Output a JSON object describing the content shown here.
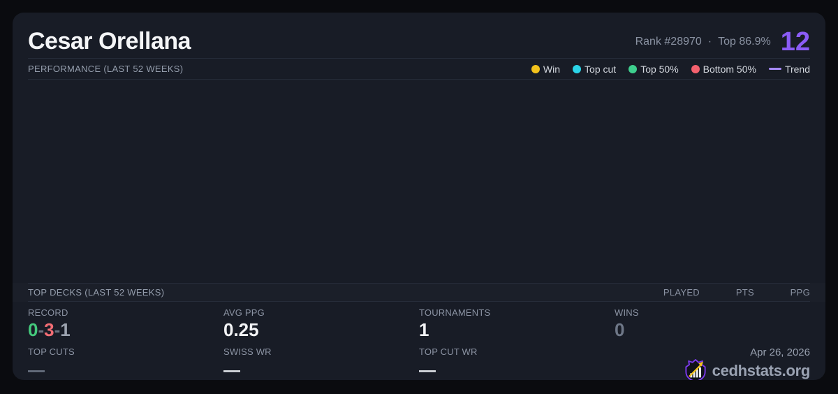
{
  "colors": {
    "accent_purple": "#8B5CF6",
    "win": "#F2C21C",
    "top_cut": "#2BD4E8",
    "top_50": "#3ECF8E",
    "bottom_50": "#F4616E",
    "trend": "#A78BFA",
    "record_win": "#44C97C",
    "record_loss": "#F26D74",
    "record_draw": "#9CA3AF"
  },
  "header": {
    "title": "Cesar Orellana",
    "rank": "Rank #28970",
    "dot_separator": "·",
    "top_percent": "Top 86.9%",
    "score": "12"
  },
  "performance": {
    "section_title": "PERFORMANCE (LAST 52 WEEKS)",
    "legend": [
      {
        "label": "Win",
        "color": "#F2C21C",
        "type": "dot"
      },
      {
        "label": "Top cut",
        "color": "#2BD4E8",
        "type": "dot"
      },
      {
        "label": "Top 50%",
        "color": "#3ECF8E",
        "type": "dot"
      },
      {
        "label": "Bottom 50%",
        "color": "#F4616E",
        "type": "dot"
      },
      {
        "label": "Trend",
        "color": "#A78BFA",
        "type": "line"
      }
    ],
    "chart_points": []
  },
  "top_decks": {
    "section_title": "TOP DECKS (LAST 52 WEEKS)",
    "columns": [
      "PLAYED",
      "PTS",
      "PPG"
    ],
    "rows": []
  },
  "stats": {
    "record": {
      "label": "RECORD",
      "wins": "0",
      "sep1": "-",
      "losses": "3",
      "sep2": "-",
      "draws": "1"
    },
    "avg_ppg": {
      "label": "AVG PPG",
      "value": "0.25"
    },
    "tournaments": {
      "label": "TOURNAMENTS",
      "value": "1"
    },
    "wins": {
      "label": "WINS",
      "value": "0"
    },
    "top_cuts": {
      "label": "TOP CUTS",
      "value": "—"
    },
    "swiss_wr": {
      "label": "SWISS WR",
      "value": "—"
    },
    "top_cut_wr": {
      "label": "TOP CUT WR",
      "value": "—"
    }
  },
  "footer": {
    "date": "Apr 26, 2026",
    "brand": "cedhstats.org"
  }
}
